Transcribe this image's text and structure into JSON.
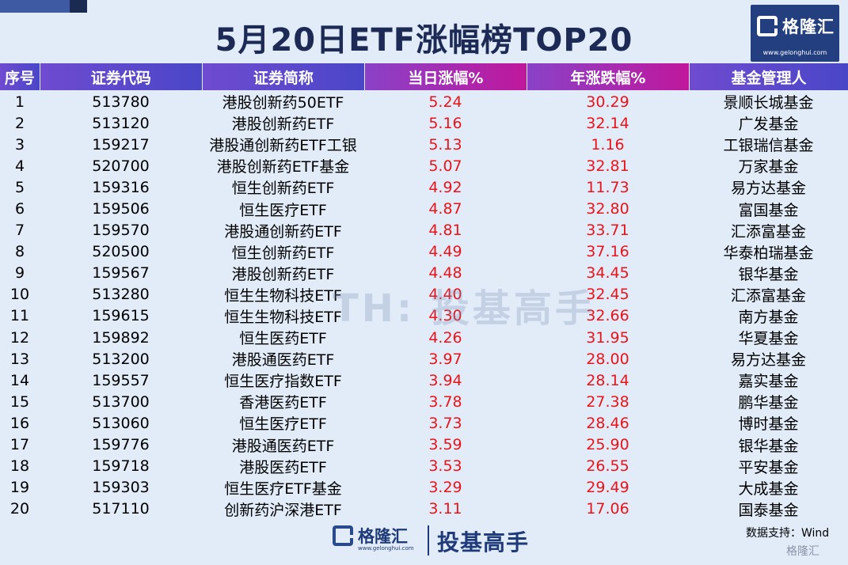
{
  "title": "5月20日ETF涨幅榜TOP20",
  "logo": {
    "name": "格隆汇",
    "url": "www.gelonghui.com"
  },
  "columns": [
    "序号",
    "证券代码",
    "证券简称",
    "当日涨幅%",
    "年涨跌幅%",
    "基金管理人"
  ],
  "rows": [
    [
      "1",
      "513780",
      "港股创新药50ETF",
      "5.24",
      "30.29",
      "景顺长城基金"
    ],
    [
      "2",
      "513120",
      "港股创新药ETF",
      "5.16",
      "32.14",
      "广发基金"
    ],
    [
      "3",
      "159217",
      "港股通创新药ETF工银",
      "5.13",
      "1.16",
      "工银瑞信基金"
    ],
    [
      "4",
      "520700",
      "港股创新药ETF基金",
      "5.07",
      "32.81",
      "万家基金"
    ],
    [
      "5",
      "159316",
      "恒生创新药ETF",
      "4.92",
      "11.73",
      "易方达基金"
    ],
    [
      "6",
      "159506",
      "恒生医疗ETF",
      "4.87",
      "32.80",
      "富国基金"
    ],
    [
      "7",
      "159570",
      "港股通创新药ETF",
      "4.81",
      "33.71",
      "汇添富基金"
    ],
    [
      "8",
      "520500",
      "恒生创新药ETF",
      "4.49",
      "37.16",
      "华泰柏瑞基金"
    ],
    [
      "9",
      "159567",
      "港股创新药ETF",
      "4.48",
      "34.45",
      "银华基金"
    ],
    [
      "10",
      "513280",
      "恒生生物科技ETF",
      "4.40",
      "32.45",
      "汇添富基金"
    ],
    [
      "11",
      "159615",
      "恒生生物科技ETF",
      "4.30",
      "32.66",
      "南方基金"
    ],
    [
      "12",
      "159892",
      "恒生医药ETF",
      "4.26",
      "31.95",
      "华夏基金"
    ],
    [
      "13",
      "513200",
      "港股通医药ETF",
      "3.97",
      "28.00",
      "易方达基金"
    ],
    [
      "14",
      "159557",
      "恒生医疗指数ETF",
      "3.94",
      "28.14",
      "嘉实基金"
    ],
    [
      "15",
      "513700",
      "香港医药ETF",
      "3.78",
      "27.38",
      "鹏华基金"
    ],
    [
      "16",
      "513060",
      "恒生医疗ETF",
      "3.73",
      "28.46",
      "博时基金"
    ],
    [
      "17",
      "159776",
      "港股通医药ETF",
      "3.59",
      "25.90",
      "银华基金"
    ],
    [
      "18",
      "159718",
      "港股医药ETF",
      "3.53",
      "26.55",
      "平安基金"
    ],
    [
      "19",
      "159303",
      "恒生医疗ETF基金",
      "3.29",
      "29.49",
      "大成基金"
    ],
    [
      "20",
      "517110",
      "创新药沪深港ETF",
      "3.11",
      "17.06",
      "国泰基金"
    ]
  ],
  "watermark": "TH: 投基高手",
  "footer": {
    "brand": "格隆汇",
    "url": "www.gelonghui.com",
    "slogan": "投基高手",
    "source": "数据支持：Wind",
    "mini_mark": "格隆汇"
  },
  "colors": {
    "header_purple": "#5a48cc",
    "header_magenta": "#c0179c",
    "value_red": "#e8141c",
    "background": "#e2ecf8"
  }
}
